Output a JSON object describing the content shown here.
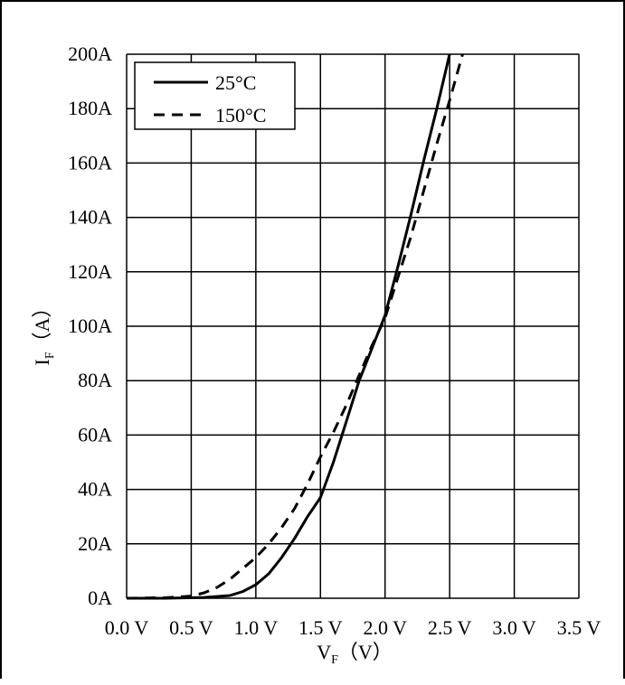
{
  "chart_data": {
    "type": "line",
    "title": "",
    "xlabel": {
      "main": "V",
      "sub": "F",
      "unit": "（V）"
    },
    "ylabel": {
      "main": "I",
      "sub": "F",
      "unit": "（A）"
    },
    "xlim": [
      0,
      3.5
    ],
    "ylim": [
      0,
      200
    ],
    "xticks": [
      0,
      0.5,
      1.0,
      1.5,
      2.0,
      2.5,
      3.0,
      3.5
    ],
    "xtick_labels": [
      "0.0 V",
      "0.5 V",
      "1.0 V",
      "1.5 V",
      "2.0 V",
      "2.5 V",
      "3.0 V",
      "3.5 V"
    ],
    "yticks": [
      0,
      20,
      40,
      60,
      80,
      100,
      120,
      140,
      160,
      180,
      200
    ],
    "ytick_labels": [
      "0A",
      "20A",
      "40A",
      "60A",
      "80A",
      "100A",
      "120A",
      "140A",
      "160A",
      "180A",
      "200A"
    ],
    "grid": true,
    "legend_position": "top-left",
    "series": [
      {
        "name": "25°C",
        "style": "solid",
        "color": "#000000",
        "x": [
          0,
          0.3,
          0.6,
          0.8,
          0.9,
          1.0,
          1.1,
          1.2,
          1.3,
          1.4,
          1.5,
          1.6,
          1.7,
          1.8,
          1.9,
          2.0,
          2.1,
          2.2,
          2.3,
          2.4,
          2.5
        ],
        "y": [
          0,
          0,
          0.3,
          1,
          2.5,
          5,
          9,
          15,
          22,
          30,
          37,
          50,
          65,
          80,
          92,
          104,
          122,
          141,
          161,
          180,
          200
        ]
      },
      {
        "name": "150°C",
        "style": "dashed",
        "color": "#000000",
        "x": [
          0,
          0.3,
          0.5,
          0.6,
          0.7,
          0.8,
          0.9,
          1.0,
          1.1,
          1.2,
          1.3,
          1.4,
          1.5,
          1.6,
          1.7,
          1.8,
          1.9,
          2.0,
          2.1,
          2.2,
          2.3,
          2.4,
          2.5,
          2.6
        ],
        "y": [
          0,
          0.2,
          0.8,
          2,
          4,
          7,
          11,
          15,
          20,
          26,
          33,
          42,
          52,
          61,
          71,
          82,
          93,
          103,
          118,
          133,
          150,
          167,
          183,
          200
        ]
      }
    ]
  }
}
